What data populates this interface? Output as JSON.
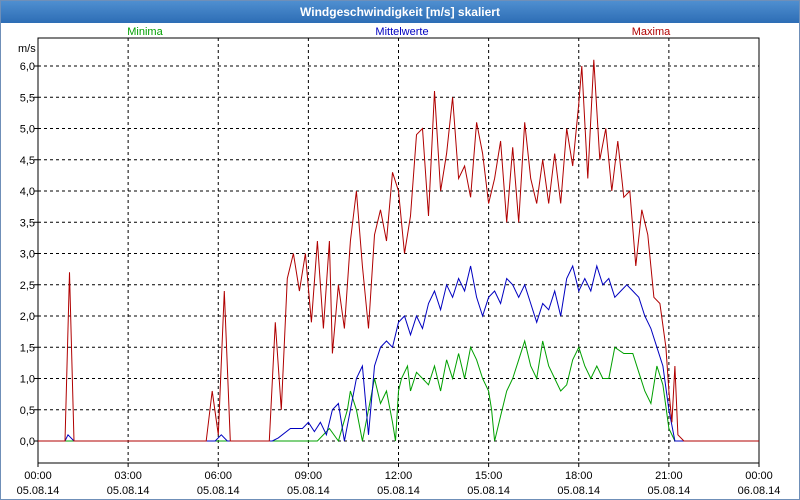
{
  "window": {
    "title": "Windgeschwindigkeit [m/s] skaliert"
  },
  "chart_data": {
    "type": "line",
    "title": "Windgeschwindigkeit [m/s] skaliert",
    "ylabel": "m/s",
    "ylim": [
      0,
      6.35
    ],
    "xlim": [
      0,
      24
    ],
    "grid": true,
    "y_ticks": [
      {
        "v": 0,
        "label": "0,0"
      },
      {
        "v": 0.5,
        "label": "0,5"
      },
      {
        "v": 1,
        "label": "1,0"
      },
      {
        "v": 1.5,
        "label": "1,5"
      },
      {
        "v": 2,
        "label": "2,0"
      },
      {
        "v": 2.5,
        "label": "2,5"
      },
      {
        "v": 3,
        "label": "3,0"
      },
      {
        "v": 3.5,
        "label": "3,5"
      },
      {
        "v": 4,
        "label": "4,0"
      },
      {
        "v": 4.5,
        "label": "4,5"
      },
      {
        "v": 5,
        "label": "5,0"
      },
      {
        "v": 5.5,
        "label": "5,5"
      },
      {
        "v": 6,
        "label": "6,0"
      }
    ],
    "x_ticks": [
      {
        "v": 0,
        "time": "00:00",
        "date": "05.08.14"
      },
      {
        "v": 3,
        "time": "03:00",
        "date": "05.08.14"
      },
      {
        "v": 6,
        "time": "06:00",
        "date": "05.08.14"
      },
      {
        "v": 9,
        "time": "09:00",
        "date": "05.08.14"
      },
      {
        "v": 12,
        "time": "12:00",
        "date": "05.08.14"
      },
      {
        "v": 15,
        "time": "15:00",
        "date": "05.08.14"
      },
      {
        "v": 18,
        "time": "18:00",
        "date": "05.08.14"
      },
      {
        "v": 21,
        "time": "21:00",
        "date": "05.08.14"
      },
      {
        "v": 24,
        "time": "00:00",
        "date": "06.08.14"
      }
    ],
    "series": [
      {
        "name": "Minima",
        "color": "#00a000",
        "legend": "left",
        "points": [
          [
            0,
            0
          ],
          [
            9.3,
            0
          ],
          [
            9.7,
            0.2
          ],
          [
            10.0,
            0
          ],
          [
            10.3,
            0.5
          ],
          [
            10.4,
            0.8
          ],
          [
            10.6,
            0.5
          ],
          [
            10.8,
            0
          ],
          [
            11.0,
            0.5
          ],
          [
            11.2,
            1.0
          ],
          [
            11.4,
            0.6
          ],
          [
            11.6,
            0.8
          ],
          [
            11.8,
            0.3
          ],
          [
            11.9,
            0
          ],
          [
            12.0,
            0.8
          ],
          [
            12.1,
            1.0
          ],
          [
            12.3,
            1.2
          ],
          [
            12.4,
            0.8
          ],
          [
            12.6,
            1.1
          ],
          [
            12.8,
            1.0
          ],
          [
            13.0,
            0.9
          ],
          [
            13.2,
            1.2
          ],
          [
            13.4,
            0.8
          ],
          [
            13.6,
            1.3
          ],
          [
            13.8,
            1.0
          ],
          [
            14.0,
            1.4
          ],
          [
            14.2,
            1.0
          ],
          [
            14.4,
            1.5
          ],
          [
            14.6,
            1.3
          ],
          [
            14.8,
            1.0
          ],
          [
            15.0,
            0.8
          ],
          [
            15.1,
            0.5
          ],
          [
            15.2,
            0
          ],
          [
            15.4,
            0.4
          ],
          [
            15.6,
            0.8
          ],
          [
            15.8,
            1.0
          ],
          [
            16.0,
            1.3
          ],
          [
            16.2,
            1.6
          ],
          [
            16.4,
            1.2
          ],
          [
            16.6,
            1.0
          ],
          [
            16.8,
            1.6
          ],
          [
            17.0,
            1.2
          ],
          [
            17.2,
            1.0
          ],
          [
            17.4,
            0.8
          ],
          [
            17.6,
            0.9
          ],
          [
            17.8,
            1.3
          ],
          [
            18.0,
            1.5
          ],
          [
            18.2,
            1.2
          ],
          [
            18.4,
            1.0
          ],
          [
            18.6,
            1.2
          ],
          [
            18.8,
            1.0
          ],
          [
            19.0,
            1.0
          ],
          [
            19.2,
            1.5
          ],
          [
            19.5,
            1.4
          ],
          [
            19.8,
            1.4
          ],
          [
            20.0,
            1.1
          ],
          [
            20.2,
            0.8
          ],
          [
            20.4,
            0.6
          ],
          [
            20.6,
            1.2
          ],
          [
            20.8,
            0.9
          ],
          [
            21.0,
            0.2
          ],
          [
            21.2,
            0
          ],
          [
            24,
            0
          ]
        ]
      },
      {
        "name": "Mittelwerte",
        "color": "#0000c0",
        "legend": "center",
        "points": [
          [
            0,
            0
          ],
          [
            0.9,
            0
          ],
          [
            1.0,
            0.1
          ],
          [
            1.2,
            0
          ],
          [
            5.9,
            0
          ],
          [
            6.1,
            0.1
          ],
          [
            6.3,
            0
          ],
          [
            7.8,
            0
          ],
          [
            8.0,
            0.05
          ],
          [
            8.4,
            0.2
          ],
          [
            8.8,
            0.2
          ],
          [
            9.0,
            0.3
          ],
          [
            9.2,
            0.15
          ],
          [
            9.4,
            0.3
          ],
          [
            9.6,
            0.1
          ],
          [
            9.8,
            0.5
          ],
          [
            10.0,
            0.6
          ],
          [
            10.2,
            0
          ],
          [
            10.4,
            0.5
          ],
          [
            10.6,
            1.0
          ],
          [
            10.8,
            1.2
          ],
          [
            11.0,
            0.1
          ],
          [
            11.2,
            1.2
          ],
          [
            11.4,
            1.5
          ],
          [
            11.6,
            1.6
          ],
          [
            11.8,
            1.5
          ],
          [
            12.0,
            1.9
          ],
          [
            12.2,
            2.0
          ],
          [
            12.4,
            1.7
          ],
          [
            12.6,
            2.0
          ],
          [
            12.8,
            1.8
          ],
          [
            13.0,
            2.2
          ],
          [
            13.2,
            2.4
          ],
          [
            13.4,
            2.1
          ],
          [
            13.6,
            2.5
          ],
          [
            13.8,
            2.3
          ],
          [
            14.0,
            2.6
          ],
          [
            14.2,
            2.4
          ],
          [
            14.4,
            2.8
          ],
          [
            14.6,
            2.3
          ],
          [
            14.8,
            2.0
          ],
          [
            15.0,
            2.3
          ],
          [
            15.2,
            2.4
          ],
          [
            15.4,
            2.2
          ],
          [
            15.6,
            2.6
          ],
          [
            15.8,
            2.5
          ],
          [
            16.0,
            2.3
          ],
          [
            16.2,
            2.5
          ],
          [
            16.4,
            2.2
          ],
          [
            16.6,
            1.9
          ],
          [
            16.8,
            2.2
          ],
          [
            17.0,
            2.1
          ],
          [
            17.2,
            2.4
          ],
          [
            17.4,
            2.0
          ],
          [
            17.6,
            2.6
          ],
          [
            17.8,
            2.8
          ],
          [
            18.0,
            2.4
          ],
          [
            18.2,
            2.6
          ],
          [
            18.4,
            2.4
          ],
          [
            18.6,
            2.8
          ],
          [
            18.8,
            2.5
          ],
          [
            19.0,
            2.6
          ],
          [
            19.2,
            2.3
          ],
          [
            19.4,
            2.4
          ],
          [
            19.6,
            2.5
          ],
          [
            19.8,
            2.4
          ],
          [
            20.0,
            2.3
          ],
          [
            20.2,
            2.0
          ],
          [
            20.4,
            1.8
          ],
          [
            20.6,
            1.5
          ],
          [
            20.8,
            1.2
          ],
          [
            21.0,
            0.5
          ],
          [
            21.2,
            0
          ],
          [
            24,
            0
          ]
        ]
      },
      {
        "name": "Maxima",
        "color": "#b00000",
        "legend": "right",
        "points": [
          [
            0,
            0
          ],
          [
            0.9,
            0
          ],
          [
            1.05,
            2.7
          ],
          [
            1.2,
            0
          ],
          [
            5.6,
            0
          ],
          [
            5.8,
            0.8
          ],
          [
            6.0,
            0.1
          ],
          [
            6.2,
            2.4
          ],
          [
            6.4,
            0
          ],
          [
            7.7,
            0
          ],
          [
            7.9,
            1.9
          ],
          [
            8.1,
            0.5
          ],
          [
            8.3,
            2.6
          ],
          [
            8.5,
            3.0
          ],
          [
            8.7,
            2.4
          ],
          [
            8.9,
            3.0
          ],
          [
            9.1,
            1.9
          ],
          [
            9.3,
            3.2
          ],
          [
            9.5,
            1.8
          ],
          [
            9.7,
            3.2
          ],
          [
            9.8,
            1.4
          ],
          [
            10.0,
            2.5
          ],
          [
            10.2,
            1.8
          ],
          [
            10.4,
            3.2
          ],
          [
            10.6,
            4.0
          ],
          [
            10.8,
            2.8
          ],
          [
            11.0,
            1.8
          ],
          [
            11.2,
            3.3
          ],
          [
            11.4,
            3.7
          ],
          [
            11.6,
            3.2
          ],
          [
            11.8,
            4.3
          ],
          [
            12.0,
            4.0
          ],
          [
            12.2,
            3.0
          ],
          [
            12.4,
            3.6
          ],
          [
            12.6,
            4.9
          ],
          [
            12.8,
            5.0
          ],
          [
            13.0,
            3.6
          ],
          [
            13.2,
            5.6
          ],
          [
            13.4,
            4.0
          ],
          [
            13.6,
            4.6
          ],
          [
            13.8,
            5.5
          ],
          [
            14.0,
            4.2
          ],
          [
            14.2,
            4.4
          ],
          [
            14.4,
            3.9
          ],
          [
            14.6,
            5.1
          ],
          [
            14.8,
            4.6
          ],
          [
            15.0,
            3.8
          ],
          [
            15.2,
            4.2
          ],
          [
            15.4,
            4.8
          ],
          [
            15.6,
            3.5
          ],
          [
            15.8,
            4.7
          ],
          [
            16.0,
            3.5
          ],
          [
            16.2,
            5.1
          ],
          [
            16.4,
            4.2
          ],
          [
            16.6,
            3.8
          ],
          [
            16.8,
            4.5
          ],
          [
            17.0,
            3.8
          ],
          [
            17.2,
            4.6
          ],
          [
            17.4,
            3.8
          ],
          [
            17.6,
            5.0
          ],
          [
            17.8,
            4.4
          ],
          [
            18.0,
            5.4
          ],
          [
            18.1,
            6.0
          ],
          [
            18.3,
            4.2
          ],
          [
            18.5,
            6.1
          ],
          [
            18.7,
            4.5
          ],
          [
            18.9,
            5.0
          ],
          [
            19.1,
            4.0
          ],
          [
            19.3,
            4.8
          ],
          [
            19.5,
            3.9
          ],
          [
            19.7,
            4.0
          ],
          [
            19.9,
            2.8
          ],
          [
            20.1,
            3.7
          ],
          [
            20.3,
            3.3
          ],
          [
            20.5,
            2.3
          ],
          [
            20.7,
            2.2
          ],
          [
            20.9,
            1.5
          ],
          [
            21.0,
            0.8
          ],
          [
            21.1,
            0.3
          ],
          [
            21.2,
            1.2
          ],
          [
            21.3,
            0.1
          ],
          [
            21.5,
            0
          ],
          [
            24,
            0
          ]
        ]
      }
    ]
  }
}
